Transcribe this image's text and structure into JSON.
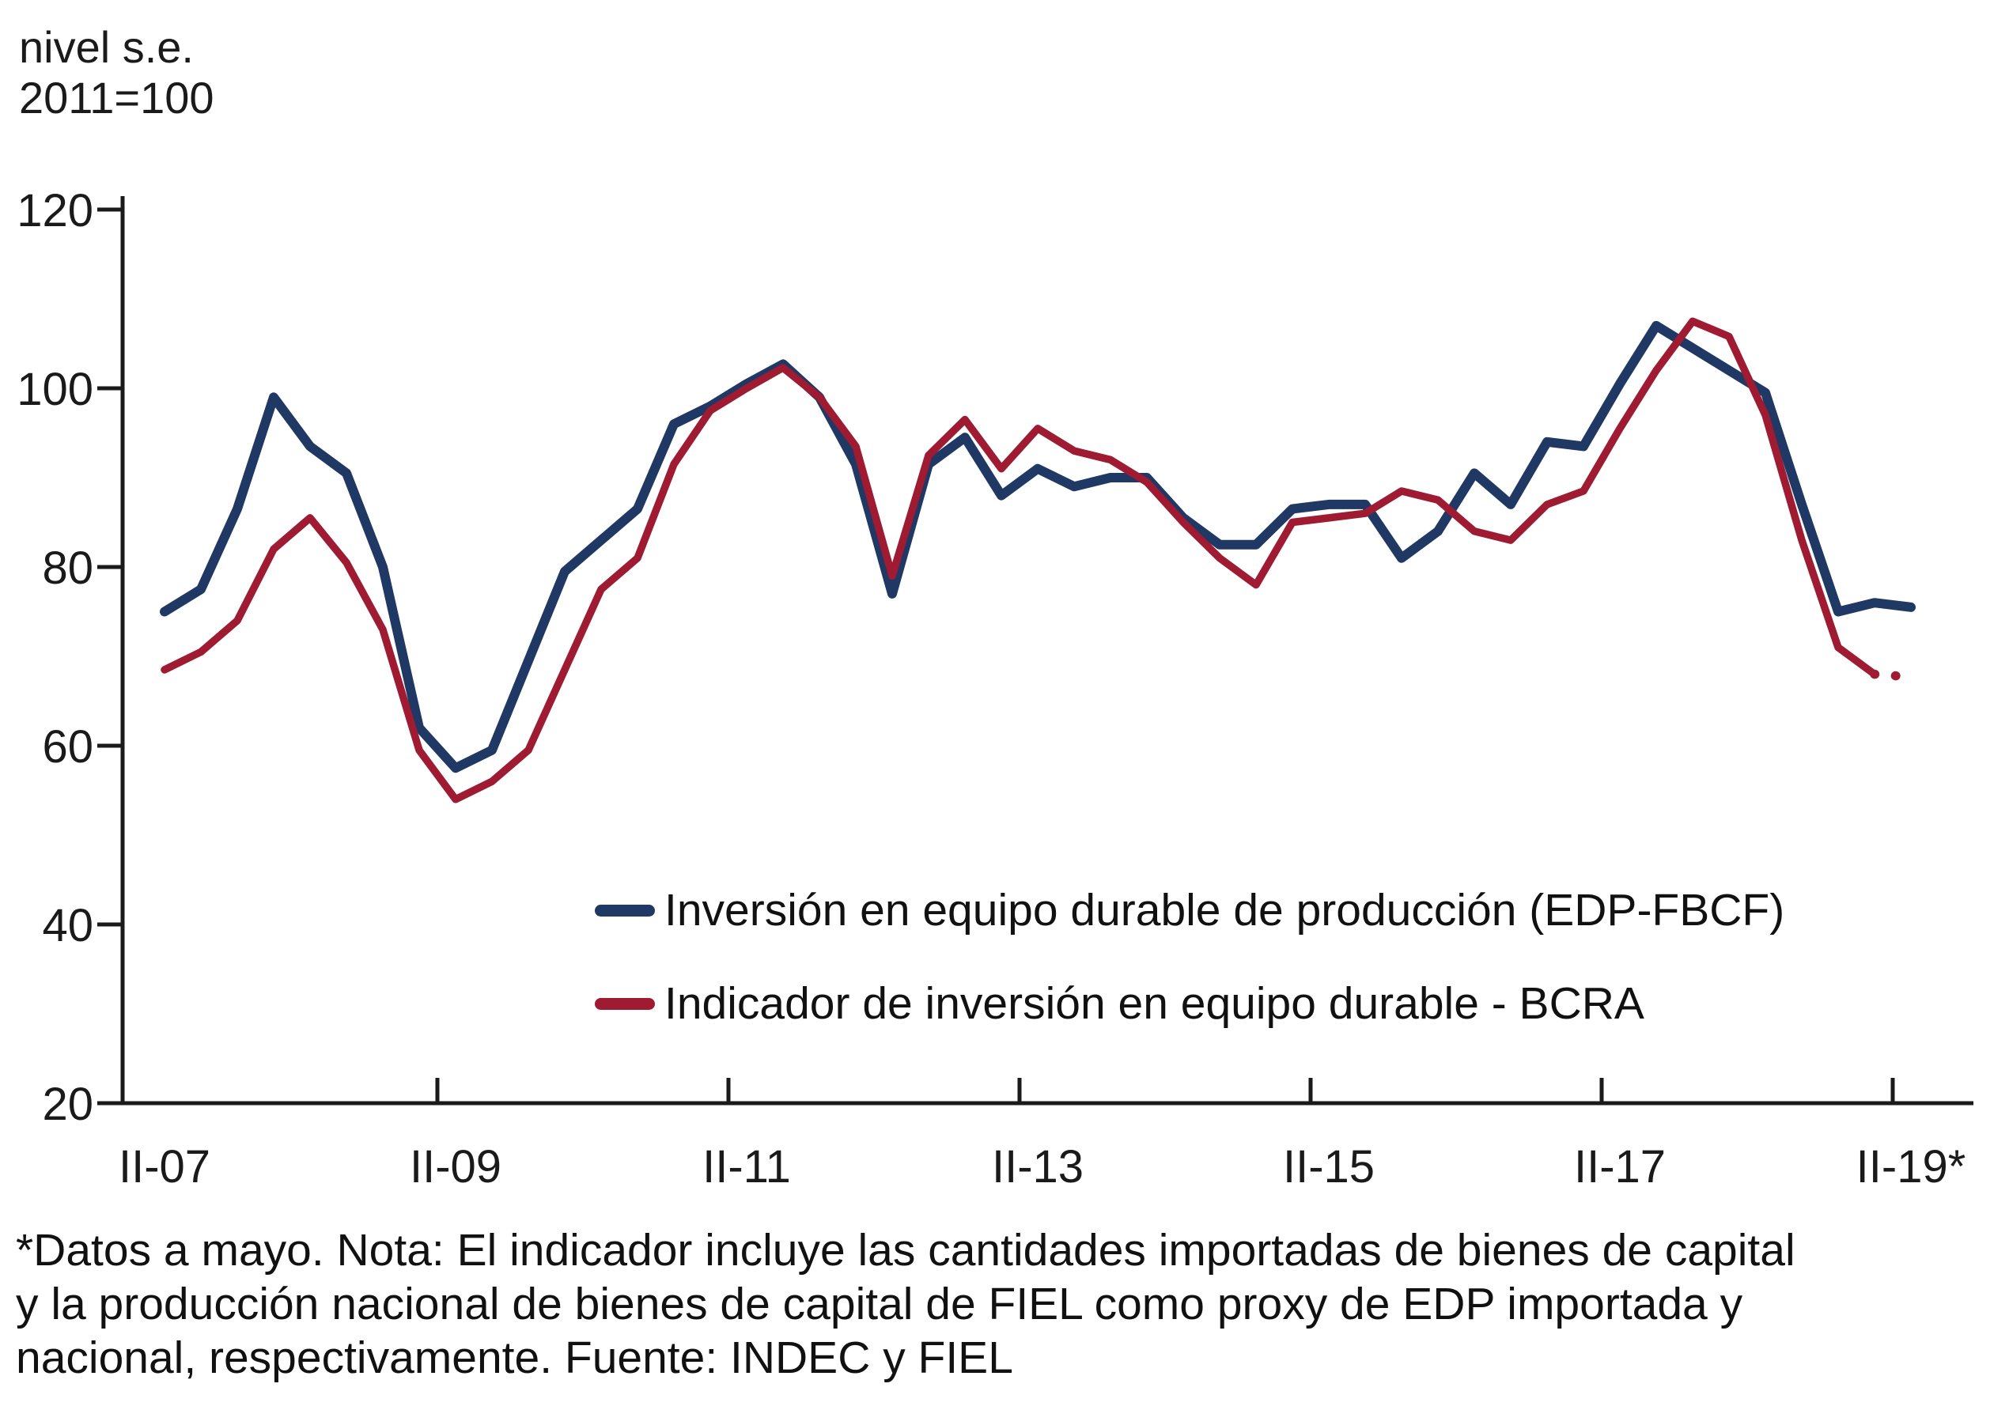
{
  "header": {
    "unit_line1": "nivel s.e.",
    "unit_line2": "2011=100"
  },
  "chart_data": {
    "type": "line",
    "title": "",
    "ylabel": "nivel s.e. 2011=100",
    "xlabel": "",
    "ylim": [
      20,
      120
    ],
    "y_ticks": [
      20,
      40,
      60,
      80,
      100,
      120
    ],
    "x_tick_labels": [
      "II-07",
      "II-09",
      "II-11",
      "II-13",
      "II-15",
      "II-17",
      "II-19*"
    ],
    "grid": false,
    "legend_position": "inside-bottom-center",
    "x_categories": [
      "II-07",
      "III-07",
      "IV-07",
      "I-08",
      "II-08",
      "III-08",
      "IV-08",
      "I-09",
      "II-09",
      "III-09",
      "IV-09",
      "I-10",
      "II-10",
      "III-10",
      "IV-10",
      "I-11",
      "II-11",
      "III-11",
      "IV-11",
      "I-12",
      "II-12",
      "III-12",
      "IV-12",
      "I-13",
      "II-13",
      "III-13",
      "IV-13",
      "I-14",
      "II-14",
      "III-14",
      "IV-14",
      "I-15",
      "II-15",
      "III-15",
      "IV-15",
      "I-16",
      "II-16",
      "III-16",
      "IV-16",
      "I-17",
      "II-17",
      "III-17",
      "IV-17",
      "I-18",
      "II-18",
      "III-18",
      "IV-18",
      "I-19",
      "II-19"
    ],
    "series": [
      {
        "name": "Inversión en equipo durable de producción (EDP-FBCF)",
        "color": "#1F3864",
        "stroke_width": 12,
        "dotted_tail_points": 0,
        "values": [
          75,
          77.5,
          86.5,
          99,
          93.5,
          90.5,
          80,
          62,
          57.5,
          59.5,
          69.5,
          79.5,
          83,
          86.5,
          96,
          98,
          100.5,
          102.7,
          99,
          91.5,
          77,
          91.5,
          94.5,
          88,
          91,
          89,
          90,
          90,
          85.5,
          82.5,
          82.5,
          86.5,
          87,
          87,
          81,
          84,
          90.5,
          87,
          94,
          93.5,
          100.5,
          107,
          104.5,
          102,
          99.5,
          87,
          75,
          76,
          75.5
        ]
      },
      {
        "name": "Indicador de inversión en equipo durable - BCRA",
        "color": "#9E1B32",
        "stroke_width": 9.5,
        "dotted_tail_points": 1,
        "values": [
          68.5,
          70.5,
          74,
          82,
          85.5,
          80.5,
          73,
          59.5,
          54,
          56,
          59.5,
          68.5,
          77.5,
          81,
          91.5,
          97.5,
          100,
          102.3,
          99,
          93.5,
          79,
          92.5,
          96.5,
          91,
          95.5,
          93,
          92,
          89.5,
          85,
          81,
          78,
          85,
          85.5,
          86,
          88.5,
          87.5,
          84,
          83,
          87,
          88.5,
          95.5,
          102,
          107.5,
          105.8,
          97,
          83,
          71,
          68,
          67.7
        ]
      }
    ],
    "axis_color": "#1a1a1a",
    "note_marker": "..."
  },
  "footnote": {
    "line1": "*Datos a mayo. Nota: El indicador incluye las cantidades importadas de bienes de capital",
    "line2": "y la producción nacional de bienes de capital de FIEL como proxy de EDP importada y",
    "line3": "nacional, respectivamente. Fuente: INDEC y FIEL"
  }
}
